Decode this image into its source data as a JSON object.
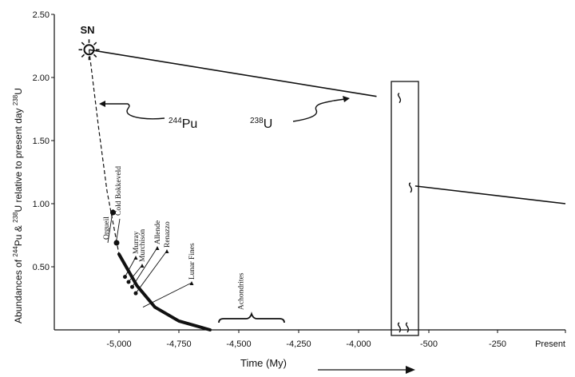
{
  "chart_data": {
    "type": "line",
    "xlabel": "Time (My)",
    "ylabel_parts": [
      "Abundances of ",
      "244",
      "Pu & ",
      "238",
      "U relative to present day ",
      "238",
      "U"
    ],
    "ylim": [
      0,
      2.5
    ],
    "yticks": [
      "2.50",
      "2.00",
      "1.50",
      "1.00",
      "0.50"
    ],
    "x_ticks_left": [
      "-5,000",
      "-4,750",
      "-4,500",
      "-4,250",
      "-4,000"
    ],
    "x_ticks_right": [
      "-500",
      "-250",
      "Present"
    ],
    "axis_break": "broken time axis between -4,000 and -500",
    "series": [
      {
        "name_parts": [
          "238",
          "U"
        ],
        "points": [
          [
            -5125,
            2.22
          ],
          [
            -3925,
            1.85
          ],
          [
            -550,
            1.14
          ],
          [
            0,
            1.0
          ]
        ]
      },
      {
        "name_parts": [
          "244",
          "Pu"
        ],
        "points": [
          [
            -5125,
            2.22
          ],
          [
            -5085,
            1.6
          ],
          [
            -5050,
            1.1
          ],
          [
            -5000,
            0.6
          ],
          [
            -4925,
            0.35
          ],
          [
            -4850,
            0.18
          ],
          [
            -4750,
            0.07
          ],
          [
            -4620,
            0.0
          ]
        ]
      }
    ],
    "meteorites": [
      {
        "label": "Orgueil",
        "x": -5025,
        "y": 0.93
      },
      {
        "label": "Cold Bokkeveld",
        "x": -5010,
        "y": 0.69
      },
      {
        "label": "Murray",
        "x": -4975,
        "y": 0.42
      },
      {
        "label": "Murchison",
        "x": -4960,
        "y": 0.38
      },
      {
        "label": "Allende",
        "x": -4945,
        "y": 0.34
      },
      {
        "label": "Renazzo",
        "x": -4930,
        "y": 0.29
      },
      {
        "label": "Lunar Fines",
        "x": -4900,
        "y": 0.18
      },
      {
        "label": "Achondrites",
        "x": -4495,
        "y": 0.0
      }
    ],
    "annotations": {
      "supernova": "SN"
    }
  }
}
